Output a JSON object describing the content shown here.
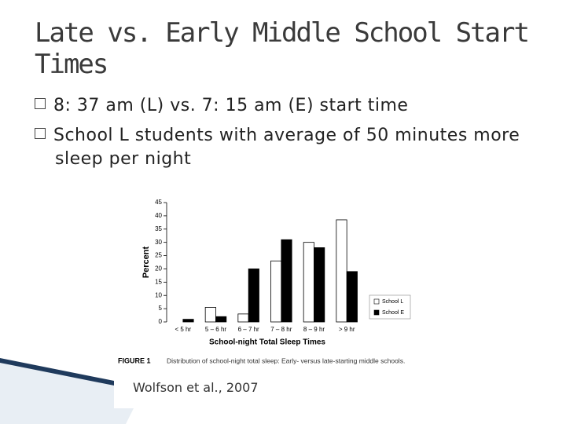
{
  "slide": {
    "title": "Late vs. Early Middle School Start Times",
    "bullets": [
      "8: 37 am (L) vs. 7: 15 am (E) start time",
      "School L students with average of 50 minutes more sleep per night"
    ],
    "citation": "Wolfson et al., 2007"
  },
  "chart_data": {
    "type": "bar",
    "y_label": "Percent",
    "x_label": "School-night Total Sleep Times",
    "caption_label": "FIGURE 1",
    "caption": "Distribution of school-night total sleep: Early- versus late-starting middle schools.",
    "categories": [
      "< 5 hr",
      "5 – 6 hr",
      "6 – 7 hr",
      "7 – 8 hr",
      "8 – 9 hr",
      "> 9 hr"
    ],
    "series": [
      {
        "name": "School L",
        "color": "#ffffff",
        "values": [
          0,
          5.5,
          3,
          23,
          30,
          38.5
        ]
      },
      {
        "name": "School E",
        "color": "#000000",
        "values": [
          1,
          2,
          20,
          31,
          28,
          19
        ]
      }
    ],
    "ylim": [
      0,
      45
    ],
    "yticks": [
      0,
      5,
      10,
      15,
      20,
      25,
      30,
      35,
      40,
      45
    ],
    "legend": "right"
  }
}
